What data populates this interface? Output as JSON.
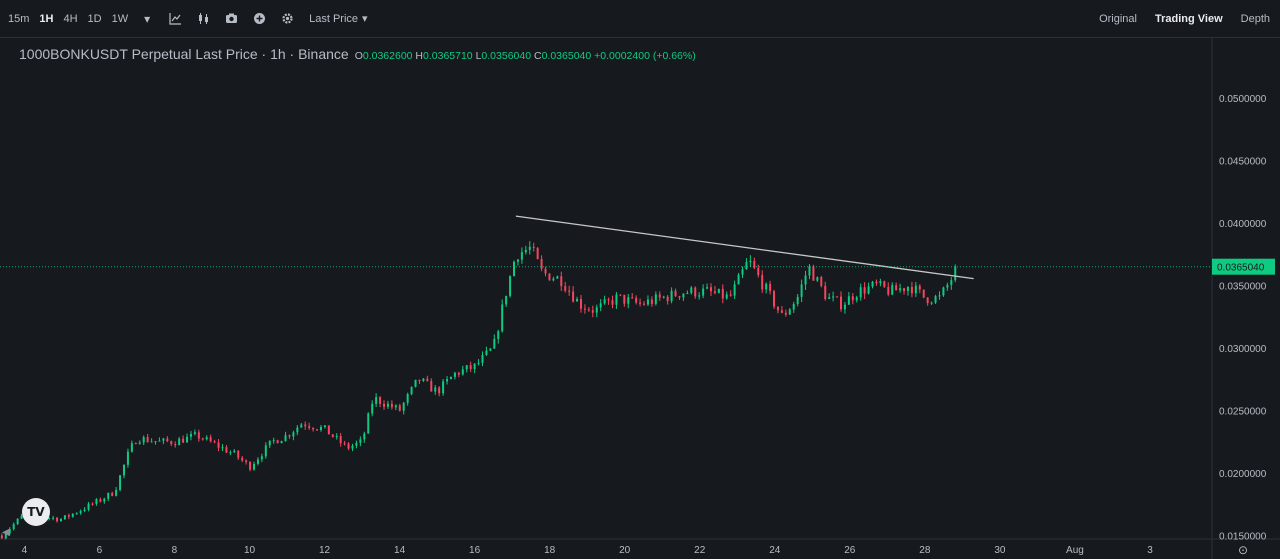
{
  "toolbar": {
    "timeframes": [
      "15m",
      "1H",
      "4H",
      "1D",
      "1W"
    ],
    "active_timeframe": "1H",
    "price_type": "Last Price",
    "views": [
      "Original",
      "Trading View",
      "Depth"
    ],
    "active_view": "Trading View",
    "icons": [
      "chevron-down-icon",
      "indicator-icon",
      "candle-style-icon",
      "camera-icon",
      "add-icon",
      "gear-icon"
    ]
  },
  "legend": {
    "symbol": "1000BONKUSDT Perpetual Last Price · 1h · Binance",
    "open_label": "O",
    "open": "0.0362600",
    "high_label": "H",
    "high": "0.0365710",
    "low_label": "L",
    "low": "0.0356040",
    "close_label": "C",
    "close": "0.0365040",
    "change": "+0.0002400 (+0.66%)"
  },
  "logo_text": "TV",
  "chart_data": {
    "type": "candlestick",
    "symbol": "1000BONKUSDT",
    "interval": "1h",
    "ylim": [
      0.0148,
      0.0548
    ],
    "y_ticks": [
      "0.0500000",
      "0.0450000",
      "0.0400000",
      "0.0350000",
      "0.0300000",
      "0.0250000",
      "0.0200000",
      "0.0150000"
    ],
    "y_tick_values": [
      0.05,
      0.045,
      0.04,
      0.035,
      0.03,
      0.025,
      0.02,
      0.015
    ],
    "x_ticks": [
      "4",
      "6",
      "8",
      "10",
      "12",
      "14",
      "16",
      "18",
      "20",
      "22",
      "24",
      "26",
      "28",
      "30",
      "Aug",
      "3"
    ],
    "x_tick_days": [
      4,
      6,
      8,
      10,
      12,
      14,
      16,
      18,
      20,
      22,
      24,
      26,
      28,
      30,
      32,
      34
    ],
    "x_range_days": [
      3.35,
      35.6
    ],
    "last_price": 0.036504,
    "last_price_label": "0.0365040",
    "trendline": {
      "from": {
        "day": 17.1,
        "price": 0.04055
      },
      "to": {
        "day": 29.3,
        "price": 0.03555
      }
    },
    "price_path": [
      [
        3.4,
        0.015
      ],
      [
        4.0,
        0.0167
      ],
      [
        5.0,
        0.0163
      ],
      [
        6.0,
        0.0178
      ],
      [
        6.4,
        0.0185
      ],
      [
        6.8,
        0.0218
      ],
      [
        7.0,
        0.0228
      ],
      [
        7.6,
        0.0225
      ],
      [
        8.0,
        0.0225
      ],
      [
        8.6,
        0.023
      ],
      [
        9.0,
        0.0224
      ],
      [
        9.6,
        0.0215
      ],
      [
        10.0,
        0.0205
      ],
      [
        10.6,
        0.0225
      ],
      [
        11.0,
        0.023
      ],
      [
        11.4,
        0.024
      ],
      [
        12.0,
        0.0235
      ],
      [
        12.6,
        0.022
      ],
      [
        13.0,
        0.0225
      ],
      [
        13.3,
        0.026
      ],
      [
        14.0,
        0.025
      ],
      [
        14.5,
        0.0275
      ],
      [
        15.0,
        0.0265
      ],
      [
        15.5,
        0.028
      ],
      [
        16.0,
        0.0285
      ],
      [
        16.5,
        0.03
      ],
      [
        16.8,
        0.034
      ],
      [
        17.1,
        0.0375
      ],
      [
        17.5,
        0.038
      ],
      [
        17.8,
        0.036
      ],
      [
        18.3,
        0.0355
      ],
      [
        18.8,
        0.0335
      ],
      [
        19.2,
        0.033
      ],
      [
        19.8,
        0.034
      ],
      [
        20.4,
        0.0335
      ],
      [
        21.0,
        0.034
      ],
      [
        21.6,
        0.0345
      ],
      [
        22.2,
        0.0345
      ],
      [
        22.8,
        0.034
      ],
      [
        23.3,
        0.037
      ],
      [
        23.8,
        0.0345
      ],
      [
        24.2,
        0.0325
      ],
      [
        24.6,
        0.034
      ],
      [
        24.9,
        0.0365
      ],
      [
        25.4,
        0.034
      ],
      [
        25.8,
        0.0335
      ],
      [
        26.2,
        0.0345
      ],
      [
        26.7,
        0.035
      ],
      [
        27.1,
        0.0345
      ],
      [
        27.6,
        0.035
      ],
      [
        28.0,
        0.034
      ],
      [
        28.4,
        0.034
      ],
      [
        28.9,
        0.0365
      ]
    ]
  },
  "colors": {
    "background": "#161a1e",
    "up": "#0ecb81",
    "down": "#f6465d",
    "grid_text": "#b7bdc6",
    "trendline": "#c8c8c8",
    "price_line": "#0ecb81"
  }
}
